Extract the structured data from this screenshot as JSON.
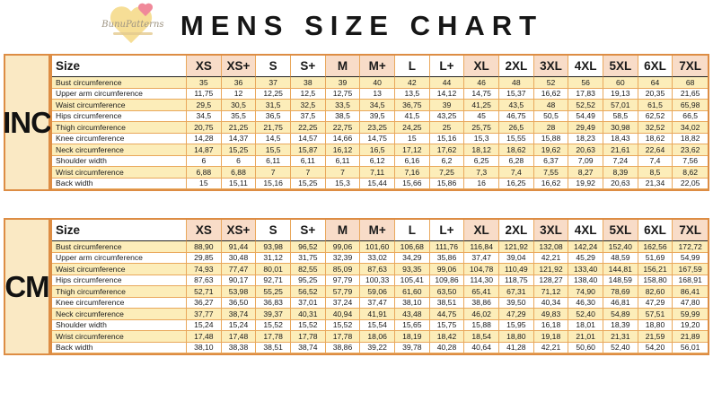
{
  "header": {
    "title": "MENS SIZE CHART",
    "logo_brand": "BunuPatterns"
  },
  "size_col_header": "Size",
  "sizes": [
    "XS",
    "XS+",
    "S",
    "S+",
    "M",
    "M+",
    "L",
    "L+",
    "XL",
    "2XL",
    "3XL",
    "4XL",
    "5XL",
    "6XL",
    "7XL"
  ],
  "tables": [
    {
      "unit_label": "INC",
      "rows": [
        {
          "label": "Bust circumference",
          "values": [
            "35",
            "36",
            "37",
            "38",
            "39",
            "40",
            "42",
            "44",
            "46",
            "48",
            "52",
            "56",
            "60",
            "64",
            "68"
          ]
        },
        {
          "label": "Upper arm circumference",
          "values": [
            "11,75",
            "12",
            "12,25",
            "12,5",
            "12,75",
            "13",
            "13,5",
            "14,12",
            "14,75",
            "15,37",
            "16,62",
            "17,83",
            "19,13",
            "20,35",
            "21,65"
          ]
        },
        {
          "label": "Waist circumference",
          "values": [
            "29,5",
            "30,5",
            "31,5",
            "32,5",
            "33,5",
            "34,5",
            "36,75",
            "39",
            "41,25",
            "43,5",
            "48",
            "52,52",
            "57,01",
            "61,5",
            "65,98"
          ]
        },
        {
          "label": "Hips circumference",
          "values": [
            "34,5",
            "35,5",
            "36,5",
            "37,5",
            "38,5",
            "39,5",
            "41,5",
            "43,25",
            "45",
            "46,75",
            "50,5",
            "54,49",
            "58,5",
            "62,52",
            "66,5"
          ]
        },
        {
          "label": "Thigh circumference",
          "values": [
            "20,75",
            "21,25",
            "21,75",
            "22,25",
            "22,75",
            "23,25",
            "24,25",
            "25",
            "25,75",
            "26,5",
            "28",
            "29,49",
            "30,98",
            "32,52",
            "34,02"
          ]
        },
        {
          "label": "Knee circumference",
          "values": [
            "14,28",
            "14,37",
            "14,5",
            "14,57",
            "14,66",
            "14,75",
            "15",
            "15,16",
            "15,3",
            "15,55",
            "15,88",
            "18,23",
            "18,43",
            "18,62",
            "18,82"
          ]
        },
        {
          "label": "Neck circumference",
          "values": [
            "14,87",
            "15,25",
            "15,5",
            "15,87",
            "16,12",
            "16,5",
            "17,12",
            "17,62",
            "18,12",
            "18,62",
            "19,62",
            "20,63",
            "21,61",
            "22,64",
            "23,62"
          ]
        },
        {
          "label": "Shoulder width",
          "values": [
            "6",
            "6",
            "6,11",
            "6,11",
            "6,11",
            "6,12",
            "6,16",
            "6,2",
            "6,25",
            "6,28",
            "6,37",
            "7,09",
            "7,24",
            "7,4",
            "7,56"
          ]
        },
        {
          "label": "Wrist circumference",
          "values": [
            "6,88",
            "6,88",
            "7",
            "7",
            "7",
            "7,11",
            "7,16",
            "7,25",
            "7,3",
            "7,4",
            "7,55",
            "8,27",
            "8,39",
            "8,5",
            "8,62"
          ]
        },
        {
          "label": "Back width",
          "values": [
            "15",
            "15,11",
            "15,16",
            "15,25",
            "15,3",
            "15,44",
            "15,66",
            "15,86",
            "16",
            "16,25",
            "16,62",
            "19,92",
            "20,63",
            "21,34",
            "22,05"
          ]
        }
      ]
    },
    {
      "unit_label": "CM",
      "rows": [
        {
          "label": "Bust circumference",
          "values": [
            "88,90",
            "91,44",
            "93,98",
            "96,52",
            "99,06",
            "101,60",
            "106,68",
            "111,76",
            "116,84",
            "121,92",
            "132,08",
            "142,24",
            "152,40",
            "162,56",
            "172,72"
          ]
        },
        {
          "label": "Upper arm circumference",
          "values": [
            "29,85",
            "30,48",
            "31,12",
            "31,75",
            "32,39",
            "33,02",
            "34,29",
            "35,86",
            "37,47",
            "39,04",
            "42,21",
            "45,29",
            "48,59",
            "51,69",
            "54,99"
          ]
        },
        {
          "label": "Waist circumference",
          "values": [
            "74,93",
            "77,47",
            "80,01",
            "82,55",
            "85,09",
            "87,63",
            "93,35",
            "99,06",
            "104,78",
            "110,49",
            "121,92",
            "133,40",
            "144,81",
            "156,21",
            "167,59"
          ]
        },
        {
          "label": "Hips circumference",
          "values": [
            "87,63",
            "90,17",
            "92,71",
            "95,25",
            "97,79",
            "100,33",
            "105,41",
            "109,86",
            "114,30",
            "118,75",
            "128,27",
            "138,40",
            "148,59",
            "158,80",
            "168,91"
          ]
        },
        {
          "label": "Thigh circumference",
          "values": [
            "52,71",
            "53,98",
            "55,25",
            "56,52",
            "57,79",
            "59,06",
            "61,60",
            "63,50",
            "65,41",
            "67,31",
            "71,12",
            "74,90",
            "78,69",
            "82,60",
            "86,41"
          ]
        },
        {
          "label": "Knee circumference",
          "values": [
            "36,27",
            "36,50",
            "36,83",
            "37,01",
            "37,24",
            "37,47",
            "38,10",
            "38,51",
            "38,86",
            "39,50",
            "40,34",
            "46,30",
            "46,81",
            "47,29",
            "47,80"
          ]
        },
        {
          "label": "Neck circumference",
          "values": [
            "37,77",
            "38,74",
            "39,37",
            "40,31",
            "40,94",
            "41,91",
            "43,48",
            "44,75",
            "46,02",
            "47,29",
            "49,83",
            "52,40",
            "54,89",
            "57,51",
            "59,99"
          ]
        },
        {
          "label": "Shoulder width",
          "values": [
            "15,24",
            "15,24",
            "15,52",
            "15,52",
            "15,52",
            "15,54",
            "15,65",
            "15,75",
            "15,88",
            "15,95",
            "16,18",
            "18,01",
            "18,39",
            "18,80",
            "19,20"
          ]
        },
        {
          "label": "Wrist circumference",
          "values": [
            "17,48",
            "17,48",
            "17,78",
            "17,78",
            "17,78",
            "18,06",
            "18,19",
            "18,42",
            "18,54",
            "18,80",
            "19,18",
            "21,01",
            "21,31",
            "21,59",
            "21,89"
          ]
        },
        {
          "label": "Back width",
          "values": [
            "38,10",
            "38,38",
            "38,51",
            "38,74",
            "38,86",
            "39,22",
            "39,78",
            "40,28",
            "40,64",
            "41,28",
            "42,21",
            "50,60",
            "52,40",
            "54,20",
            "56,01"
          ]
        }
      ]
    }
  ],
  "colors": {
    "table_border_orange": "#DD8D44",
    "cell_border_orange": "#E9A85C",
    "row_yellow": "#FCEDB9",
    "header_pink": "#F8DCC8",
    "unit_cell_cream": "#FAE9C4",
    "logo_heart_yellow": "#F6DE96",
    "logo_heart_pink": "#F0899A",
    "title_text": "#161616"
  }
}
